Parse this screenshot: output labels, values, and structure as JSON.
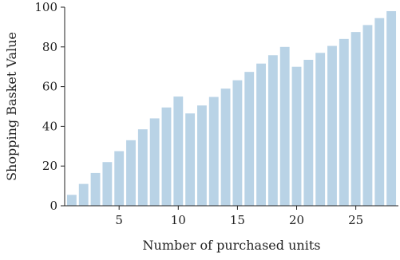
{
  "chart_data": {
    "type": "bar",
    "title": "",
    "xlabel": "Number of purchased units",
    "ylabel": "Shopping Basket Value",
    "categories": [
      1,
      2,
      3,
      4,
      5,
      6,
      7,
      8,
      9,
      10,
      11,
      12,
      13,
      14,
      15,
      16,
      17,
      18,
      19,
      20,
      21,
      22,
      23,
      24,
      25,
      26,
      27,
      28
    ],
    "values": [
      5.5,
      11,
      16.5,
      22,
      27.5,
      33,
      38.5,
      44,
      49.5,
      55,
      46.5,
      50.5,
      54.8,
      59,
      63.2,
      67.4,
      71.6,
      75.8,
      80,
      70,
      73.5,
      77,
      80.5,
      84,
      87.5,
      91,
      94.5,
      98
    ],
    "xlim": [
      0.4,
      28.6
    ],
    "ylim": [
      0,
      100
    ],
    "xticks": [
      5,
      10,
      15,
      20,
      25
    ],
    "yticks": [
      0,
      20,
      40,
      60,
      80,
      100
    ],
    "bar_color": "#b9d3e6",
    "grid": false,
    "legend": "none"
  }
}
